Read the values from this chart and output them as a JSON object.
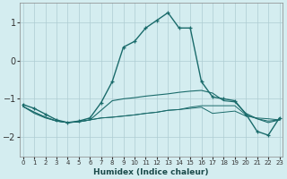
{
  "xlabel": "Humidex (Indice chaleur)",
  "x": [
    0,
    1,
    2,
    3,
    4,
    5,
    6,
    7,
    8,
    9,
    10,
    11,
    12,
    13,
    14,
    15,
    16,
    17,
    18,
    19,
    20,
    21,
    22,
    23
  ],
  "line1": [
    -1.15,
    -1.25,
    -1.4,
    -1.55,
    -1.62,
    -1.58,
    -1.5,
    -1.1,
    -0.55,
    0.35,
    0.5,
    0.85,
    1.05,
    1.25,
    0.85,
    0.85,
    -0.55,
    -0.95,
    -1.0,
    -1.05,
    -1.4,
    -1.85,
    -1.95,
    -1.5
  ],
  "line2": [
    -1.2,
    -1.38,
    -1.5,
    -1.58,
    -1.62,
    -1.6,
    -1.55,
    -1.5,
    -1.48,
    -1.45,
    -1.42,
    -1.38,
    -1.35,
    -1.3,
    -1.28,
    -1.25,
    -1.22,
    -1.38,
    -1.35,
    -1.32,
    -1.45,
    -1.5,
    -1.52,
    -1.55
  ],
  "line3": [
    -1.2,
    -1.35,
    -1.48,
    -1.58,
    -1.62,
    -1.6,
    -1.55,
    -1.5,
    -1.48,
    -1.45,
    -1.42,
    -1.38,
    -1.35,
    -1.3,
    -1.28,
    -1.22,
    -1.18,
    -1.18,
    -1.18,
    -1.18,
    -1.42,
    -1.52,
    -1.58,
    -1.55
  ],
  "line4": [
    -1.2,
    -1.35,
    -1.48,
    -1.58,
    -1.62,
    -1.6,
    -1.55,
    -1.3,
    -1.05,
    -1.0,
    -0.97,
    -0.93,
    -0.9,
    -0.87,
    -0.83,
    -0.8,
    -0.78,
    -0.85,
    -1.05,
    -1.08,
    -1.38,
    -1.52,
    -1.62,
    -1.55
  ],
  "line_color": "#1a6b6b",
  "bg_color": "#d4edf0",
  "grid_color": "#aecdd2",
  "ylim": [
    -2.5,
    1.5
  ],
  "yticks": [
    -2,
    -1,
    0,
    1
  ],
  "xlim": [
    -0.3,
    23.3
  ],
  "xtick_labels": [
    "0",
    "1",
    "2",
    "3",
    "4",
    "5",
    "6",
    "7",
    "8",
    "9",
    "10",
    "11",
    "12",
    "13",
    "14",
    "15",
    "16",
    "17",
    "18",
    "19",
    "20",
    "21",
    "22",
    "23"
  ]
}
